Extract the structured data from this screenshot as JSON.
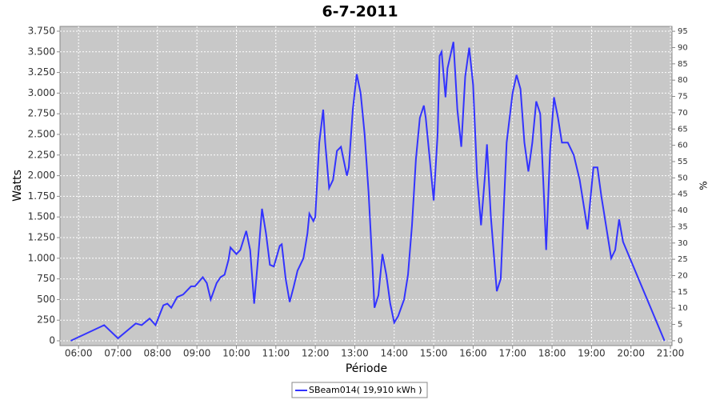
{
  "chart_data": {
    "type": "line",
    "title": "6-7-2011",
    "x_label": "Période",
    "y_label": "Watts",
    "y2_label": "%",
    "x": [
      5.8,
      6.65,
      7.0,
      7.45,
      7.6,
      7.8,
      7.95,
      8.15,
      8.25,
      8.35,
      8.5,
      8.65,
      8.85,
      8.95,
      9.15,
      9.25,
      9.35,
      9.5,
      9.6,
      9.7,
      9.8,
      9.85,
      10.0,
      10.1,
      10.25,
      10.35,
      10.45,
      10.55,
      10.65,
      10.75,
      10.85,
      10.95,
      11.1,
      11.15,
      11.25,
      11.35,
      11.45,
      11.55,
      11.7,
      11.8,
      11.85,
      11.95,
      12.0,
      12.1,
      12.2,
      12.25,
      12.35,
      12.45,
      12.55,
      12.65,
      12.8,
      12.85,
      12.95,
      13.05,
      13.15,
      13.25,
      13.35,
      13.45,
      13.5,
      13.6,
      13.7,
      13.8,
      13.9,
      14.0,
      14.1,
      14.25,
      14.35,
      14.45,
      14.55,
      14.65,
      14.75,
      14.8,
      14.9,
      15.0,
      15.1,
      15.15,
      15.2,
      15.3,
      15.35,
      15.5,
      15.6,
      15.7,
      15.8,
      15.9,
      16.0,
      16.1,
      16.2,
      16.3,
      16.35,
      16.45,
      16.6,
      16.7,
      16.85,
      17.0,
      17.1,
      17.2,
      17.3,
      17.4,
      17.5,
      17.6,
      17.7,
      17.8,
      17.85,
      17.95,
      18.05,
      18.15,
      18.25,
      18.4,
      18.55,
      18.7,
      18.9,
      19.05,
      19.15,
      19.25,
      19.3,
      19.4,
      19.5,
      19.6,
      19.7,
      19.8,
      20.85
    ],
    "series": [
      {
        "name": "SBeam014( 19,910 kWh )",
        "color": "#3333ff",
        "values": [
          0,
          190,
          30,
          210,
          190,
          270,
          190,
          430,
          450,
          400,
          530,
          560,
          660,
          660,
          770,
          700,
          500,
          700,
          770,
          800,
          980,
          1130,
          1050,
          1100,
          1330,
          1100,
          450,
          1000,
          1600,
          1300,
          920,
          900,
          1150,
          1170,
          750,
          470,
          650,
          850,
          1000,
          1300,
          1540,
          1450,
          1500,
          2400,
          2800,
          2400,
          1850,
          1950,
          2300,
          2350,
          2000,
          2100,
          2800,
          3230,
          3000,
          2500,
          1800,
          900,
          400,
          550,
          1050,
          800,
          450,
          220,
          300,
          500,
          800,
          1400,
          2200,
          2700,
          2850,
          2700,
          2200,
          1700,
          2500,
          3450,
          3500,
          2950,
          3300,
          3620,
          2800,
          2350,
          3200,
          3550,
          3100,
          2000,
          1400,
          2000,
          2380,
          1500,
          600,
          750,
          2400,
          3000,
          3220,
          3050,
          2400,
          2050,
          2400,
          2900,
          2750,
          1700,
          1100,
          2300,
          2950,
          2700,
          2400,
          2400,
          2250,
          1950,
          1350,
          2100,
          2100,
          1750,
          1600,
          1300,
          1000,
          1100,
          1470,
          1200,
          0
        ]
      }
    ],
    "xlim": [
      5.53,
      21.04
    ],
    "xticks": [
      {
        "value": 6,
        "label": "06:00"
      },
      {
        "value": 7,
        "label": "07:00"
      },
      {
        "value": 8,
        "label": "08:00"
      },
      {
        "value": 9,
        "label": "09:00"
      },
      {
        "value": 10,
        "label": "10:00"
      },
      {
        "value": 11,
        "label": "11:00"
      },
      {
        "value": 12,
        "label": "12:00"
      },
      {
        "value": 13,
        "label": "13:00"
      },
      {
        "value": 14,
        "label": "14:00"
      },
      {
        "value": 15,
        "label": "15:00"
      },
      {
        "value": 16,
        "label": "16:00"
      },
      {
        "value": 17,
        "label": "17:00"
      },
      {
        "value": 18,
        "label": "18:00"
      },
      {
        "value": 19,
        "label": "19:00"
      },
      {
        "value": 20,
        "label": "20:00"
      },
      {
        "value": 21,
        "label": "21:00"
      }
    ],
    "ylim": [
      -58,
      3808
    ],
    "yticks": [
      0,
      250,
      500,
      750,
      {
        "value": 1000,
        "label": "1.000"
      },
      {
        "value": 1250,
        "label": "1.250"
      },
      {
        "value": 1500,
        "label": "1.500"
      },
      {
        "value": 1750,
        "label": "1.750"
      },
      {
        "value": 2000,
        "label": "2.000"
      },
      {
        "value": 2250,
        "label": "2.250"
      },
      {
        "value": 2500,
        "label": "2.500"
      },
      {
        "value": 2750,
        "label": "2.750"
      },
      {
        "value": 3000,
        "label": "3.000"
      },
      {
        "value": 3250,
        "label": "3.250"
      },
      {
        "value": 3500,
        "label": "3.500"
      },
      {
        "value": 3750,
        "label": "3.750"
      }
    ],
    "y2lim": [
      -1.5,
      96.5
    ],
    "y2ticks": [
      0,
      5,
      10,
      15,
      20,
      25,
      30,
      35,
      40,
      45,
      50,
      55,
      60,
      65,
      70,
      75,
      80,
      85,
      90,
      95
    ],
    "grid": true,
    "legend": "bottom"
  }
}
